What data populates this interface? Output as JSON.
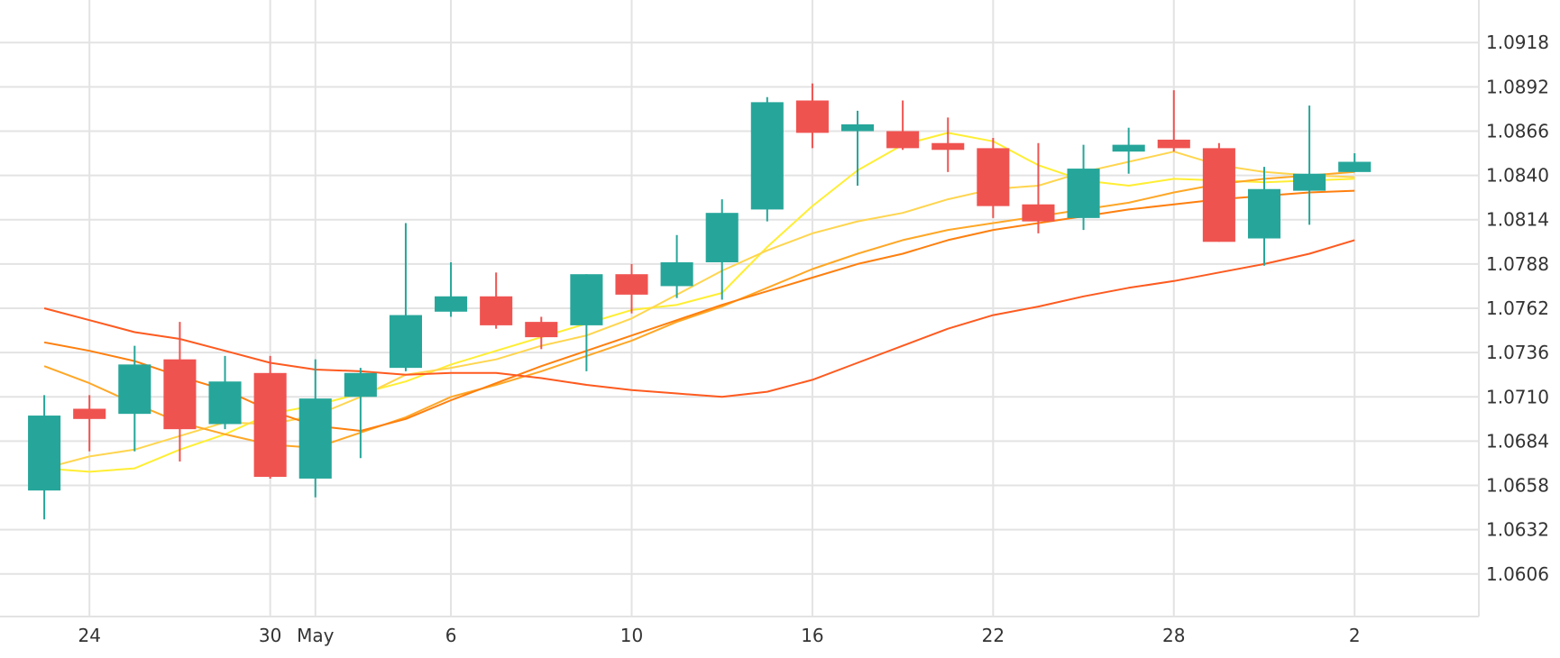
{
  "chart_data": {
    "type": "candlestick",
    "title": "",
    "xlabel": "",
    "ylabel": "",
    "x_ticks": [
      {
        "label": "24",
        "index": 1
      },
      {
        "label": "30",
        "index": 5
      },
      {
        "label": "May",
        "index": 6
      },
      {
        "label": "6",
        "index": 9
      },
      {
        "label": "10",
        "index": 13
      },
      {
        "label": "16",
        "index": 17
      },
      {
        "label": "22",
        "index": 21
      },
      {
        "label": "28",
        "index": 25
      },
      {
        "label": "2",
        "index": 29
      }
    ],
    "y_ticks": [
      1.0606,
      1.0632,
      1.0658,
      1.0684,
      1.071,
      1.0736,
      1.0762,
      1.0788,
      1.0814,
      1.084,
      1.0866,
      1.0892,
      1.0918
    ],
    "y_tick_labels": [
      "1.0606",
      "1.0632",
      "1.0658",
      "1.0684",
      "1.0710",
      "1.0736",
      "1.0762",
      "1.0788",
      "1.0814",
      "1.0840",
      "1.0866",
      "1.0892",
      "1.0918"
    ],
    "ylim": [
      1.0581,
      1.0943
    ],
    "xlim": [
      -0.98,
      31.75
    ],
    "grid": true,
    "y_axis_position": "right",
    "colors": {
      "up": "#26a69a",
      "down": "#ef5350",
      "grid": "#e3e3e3",
      "text": "#333333"
    },
    "candles": [
      {
        "open": 1.0655,
        "high": 1.0711,
        "low": 1.0638,
        "close": 1.0699
      },
      {
        "open": 1.0703,
        "high": 1.0711,
        "low": 1.0678,
        "close": 1.0697
      },
      {
        "open": 1.07,
        "high": 1.074,
        "low": 1.0678,
        "close": 1.0729
      },
      {
        "open": 1.0732,
        "high": 1.0754,
        "low": 1.0672,
        "close": 1.0691
      },
      {
        "open": 1.0694,
        "high": 1.0734,
        "low": 1.0691,
        "close": 1.0719
      },
      {
        "open": 1.0724,
        "high": 1.0734,
        "low": 1.0662,
        "close": 1.0663
      },
      {
        "open": 1.0662,
        "high": 1.0732,
        "low": 1.0651,
        "close": 1.0709
      },
      {
        "open": 1.071,
        "high": 1.0727,
        "low": 1.0674,
        "close": 1.0724
      },
      {
        "open": 1.0727,
        "high": 1.0812,
        "low": 1.0725,
        "close": 1.0758
      },
      {
        "open": 1.076,
        "high": 1.0789,
        "low": 1.0757,
        "close": 1.0769
      },
      {
        "open": 1.0769,
        "high": 1.0783,
        "low": 1.075,
        "close": 1.0752
      },
      {
        "open": 1.0754,
        "high": 1.0757,
        "low": 1.0738,
        "close": 1.0745
      },
      {
        "open": 1.0752,
        "high": 1.0782,
        "low": 1.0725,
        "close": 1.0782
      },
      {
        "open": 1.0782,
        "high": 1.0788,
        "low": 1.0759,
        "close": 1.077
      },
      {
        "open": 1.0775,
        "high": 1.0805,
        "low": 1.0768,
        "close": 1.0789
      },
      {
        "open": 1.0789,
        "high": 1.0826,
        "low": 1.0767,
        "close": 1.0818
      },
      {
        "open": 1.082,
        "high": 1.0886,
        "low": 1.0813,
        "close": 1.0883
      },
      {
        "open": 1.0884,
        "high": 1.0894,
        "low": 1.0856,
        "close": 1.0865
      },
      {
        "open": 1.0866,
        "high": 1.0878,
        "low": 1.0834,
        "close": 1.087
      },
      {
        "open": 1.0866,
        "high": 1.0884,
        "low": 1.0855,
        "close": 1.0856
      },
      {
        "open": 1.0859,
        "high": 1.0874,
        "low": 1.0842,
        "close": 1.0855
      },
      {
        "open": 1.0856,
        "high": 1.0862,
        "low": 1.0815,
        "close": 1.0822
      },
      {
        "open": 1.0823,
        "high": 1.0859,
        "low": 1.0806,
        "close": 1.0813
      },
      {
        "open": 1.0815,
        "high": 1.0858,
        "low": 1.0808,
        "close": 1.0844
      },
      {
        "open": 1.0854,
        "high": 1.0868,
        "low": 1.0841,
        "close": 1.0858
      },
      {
        "open": 1.0861,
        "high": 1.089,
        "low": 1.0854,
        "close": 1.0856
      },
      {
        "open": 1.0856,
        "high": 1.0859,
        "low": 1.0801,
        "close": 1.0801
      },
      {
        "open": 1.0803,
        "high": 1.0845,
        "low": 1.0787,
        "close": 1.0832
      },
      {
        "open": 1.0831,
        "high": 1.0881,
        "low": 1.0811,
        "close": 1.0841
      },
      {
        "open": 1.0842,
        "high": 1.0853,
        "low": 1.0842,
        "close": 1.0848
      }
    ],
    "overlay_lines": [
      {
        "color": "#ffee33",
        "values": [
          1.0668,
          1.0666,
          1.0668,
          1.0679,
          1.0688,
          1.07,
          1.0705,
          1.0712,
          1.0719,
          1.0729,
          1.0737,
          1.0745,
          1.0753,
          1.0761,
          1.0764,
          1.0771,
          1.0798,
          1.0822,
          1.0843,
          1.0858,
          1.0865,
          1.086,
          1.0846,
          1.0837,
          1.0834,
          1.0838,
          1.0837,
          1.0836,
          1.0837,
          1.0838
        ]
      },
      {
        "color": "#ffd54f",
        "values": [
          1.0668,
          1.0675,
          1.0679,
          1.0687,
          1.0695,
          1.0694,
          1.0699,
          1.071,
          1.0723,
          1.0727,
          1.0732,
          1.074,
          1.0746,
          1.0756,
          1.077,
          1.0784,
          1.0796,
          1.0806,
          1.0813,
          1.0818,
          1.0826,
          1.0832,
          1.0834,
          1.0842,
          1.0848,
          1.0854,
          1.0846,
          1.0842,
          1.084,
          1.0839
        ]
      },
      {
        "color": "#ffa726",
        "values": [
          1.0728,
          1.0718,
          1.0706,
          1.0695,
          1.0688,
          1.0682,
          1.068,
          1.0689,
          1.0698,
          1.071,
          1.0717,
          1.0725,
          1.0734,
          1.0743,
          1.0754,
          1.0763,
          1.0774,
          1.0785,
          1.0794,
          1.0802,
          1.0808,
          1.0812,
          1.0816,
          1.082,
          1.0824,
          1.083,
          1.0835,
          1.0838,
          1.084,
          1.0842
        ]
      },
      {
        "color": "#ff7f0e",
        "values": [
          1.0742,
          1.0737,
          1.0731,
          1.0722,
          1.0714,
          1.0702,
          1.0693,
          1.069,
          1.0697,
          1.0708,
          1.0718,
          1.0728,
          1.0737,
          1.0746,
          1.0755,
          1.0764,
          1.0772,
          1.078,
          1.0788,
          1.0794,
          1.0802,
          1.0808,
          1.0812,
          1.0816,
          1.082,
          1.0823,
          1.0826,
          1.0828,
          1.083,
          1.0831
        ]
      },
      {
        "color": "#ff5a1f",
        "values": [
          1.0762,
          1.0755,
          1.0748,
          1.0744,
          1.0737,
          1.073,
          1.0726,
          1.0725,
          1.0723,
          1.0724,
          1.0724,
          1.0721,
          1.0717,
          1.0714,
          1.0712,
          1.071,
          1.0713,
          1.072,
          1.073,
          1.074,
          1.075,
          1.0758,
          1.0763,
          1.0769,
          1.0774,
          1.0778,
          1.0783,
          1.0788,
          1.0794,
          1.0802
        ]
      }
    ]
  }
}
